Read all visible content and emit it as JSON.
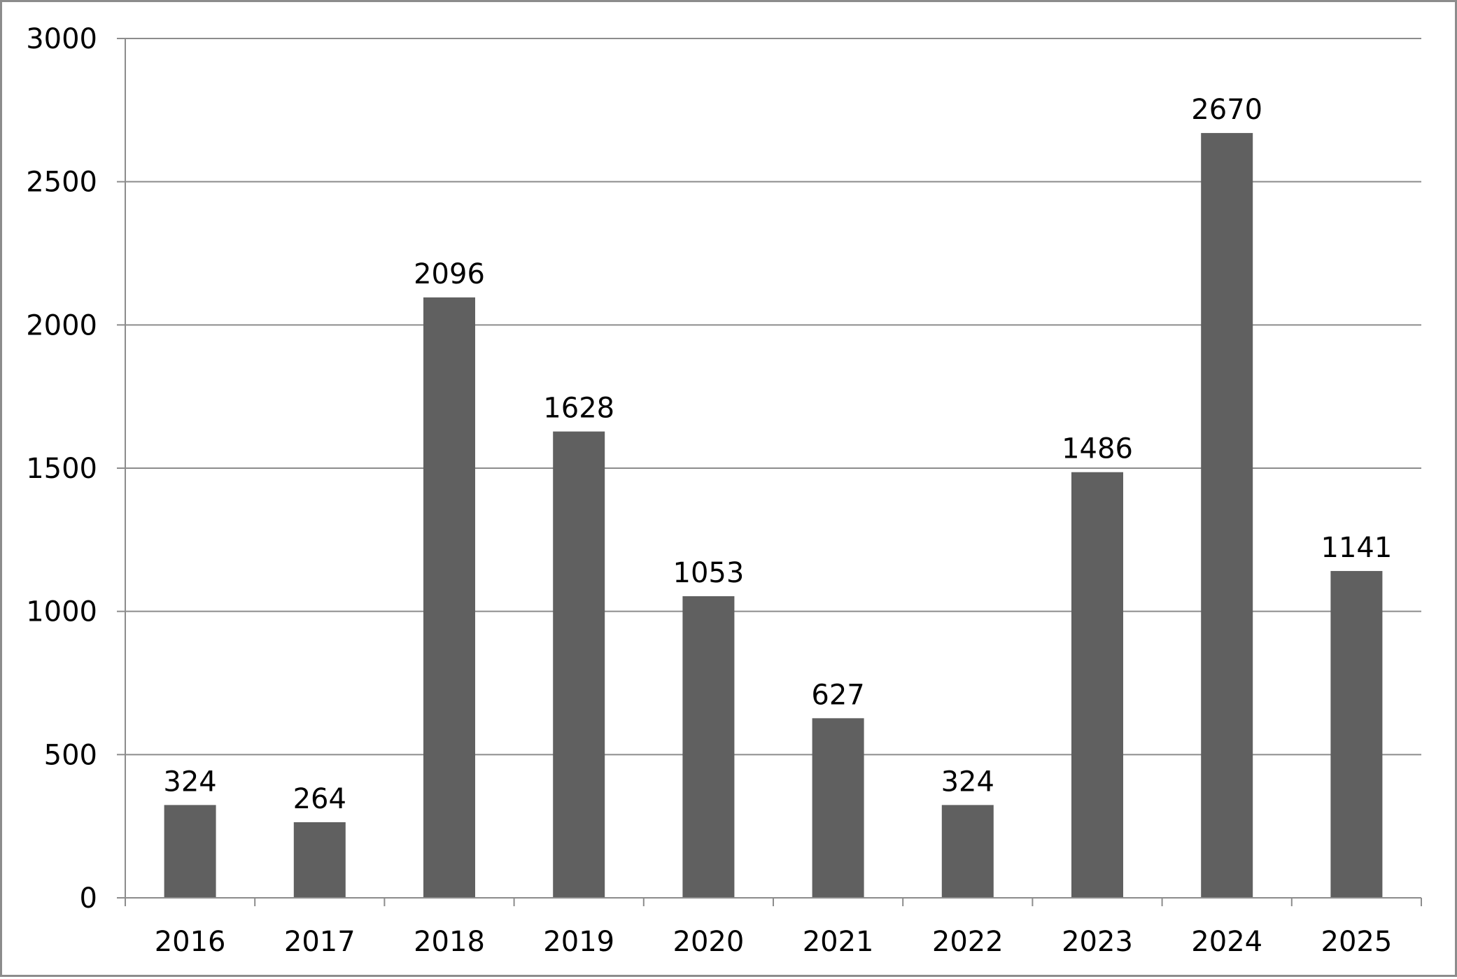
{
  "chart_data": {
    "type": "bar",
    "title": "",
    "xlabel": "",
    "ylabel": "",
    "categories": [
      "2016",
      "2017",
      "2018",
      "2019",
      "2020",
      "2021",
      "2022",
      "2023",
      "2024",
      "2025"
    ],
    "values": [
      324,
      264,
      2096,
      1628,
      1053,
      627,
      324,
      1486,
      2670,
      1141
    ],
    "data_labels": [
      "324",
      "264",
      "2096",
      "1628",
      "1053",
      "627",
      "324",
      "1486",
      "2670",
      "1141"
    ],
    "ylim": [
      0,
      3000
    ],
    "yticks": [
      0,
      500,
      1000,
      1500,
      2000,
      2500,
      3000
    ],
    "ytick_labels": [
      "0",
      "500",
      "1000",
      "1500",
      "2000",
      "2500",
      "3000"
    ],
    "grid": true,
    "legend": "none",
    "bar_color": "#606060",
    "gridline_color": "#8c8c8c"
  }
}
